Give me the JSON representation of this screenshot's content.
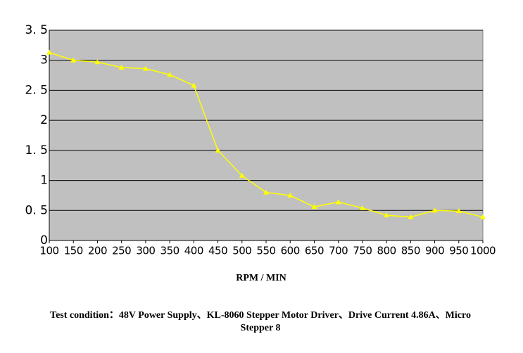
{
  "chart_data": {
    "type": "line",
    "x": [
      100,
      150,
      200,
      250,
      300,
      350,
      400,
      450,
      500,
      550,
      600,
      650,
      700,
      750,
      800,
      850,
      900,
      950,
      1000
    ],
    "values": [
      3.13,
      3.0,
      2.97,
      2.88,
      2.86,
      2.76,
      2.58,
      1.5,
      1.08,
      0.8,
      0.75,
      0.56,
      0.64,
      0.54,
      0.42,
      0.39,
      0.5,
      0.49,
      0.39
    ],
    "color": "#ffff00",
    "xlim": [
      100,
      1000
    ],
    "xticks": [
      100,
      150,
      200,
      250,
      300,
      350,
      400,
      450,
      500,
      550,
      600,
      650,
      700,
      750,
      800,
      850,
      900,
      950,
      1000
    ],
    "ylim": [
      0,
      3.5
    ],
    "yticks": [
      0,
      {
        "value": 0.5,
        "label": "0. 5"
      },
      1,
      {
        "value": 1.5,
        "label": "1. 5"
      },
      2,
      {
        "value": 2.5,
        "label": "2. 5"
      },
      3,
      {
        "value": 3.5,
        "label": "3. 5"
      }
    ],
    "grid": true,
    "x_label": "RPM / MIN",
    "note": "Test condition：48V Power Supply、KL-8060 Stepper Motor Driver、Drive Current 4.86A、Micro Stepper 8"
  }
}
